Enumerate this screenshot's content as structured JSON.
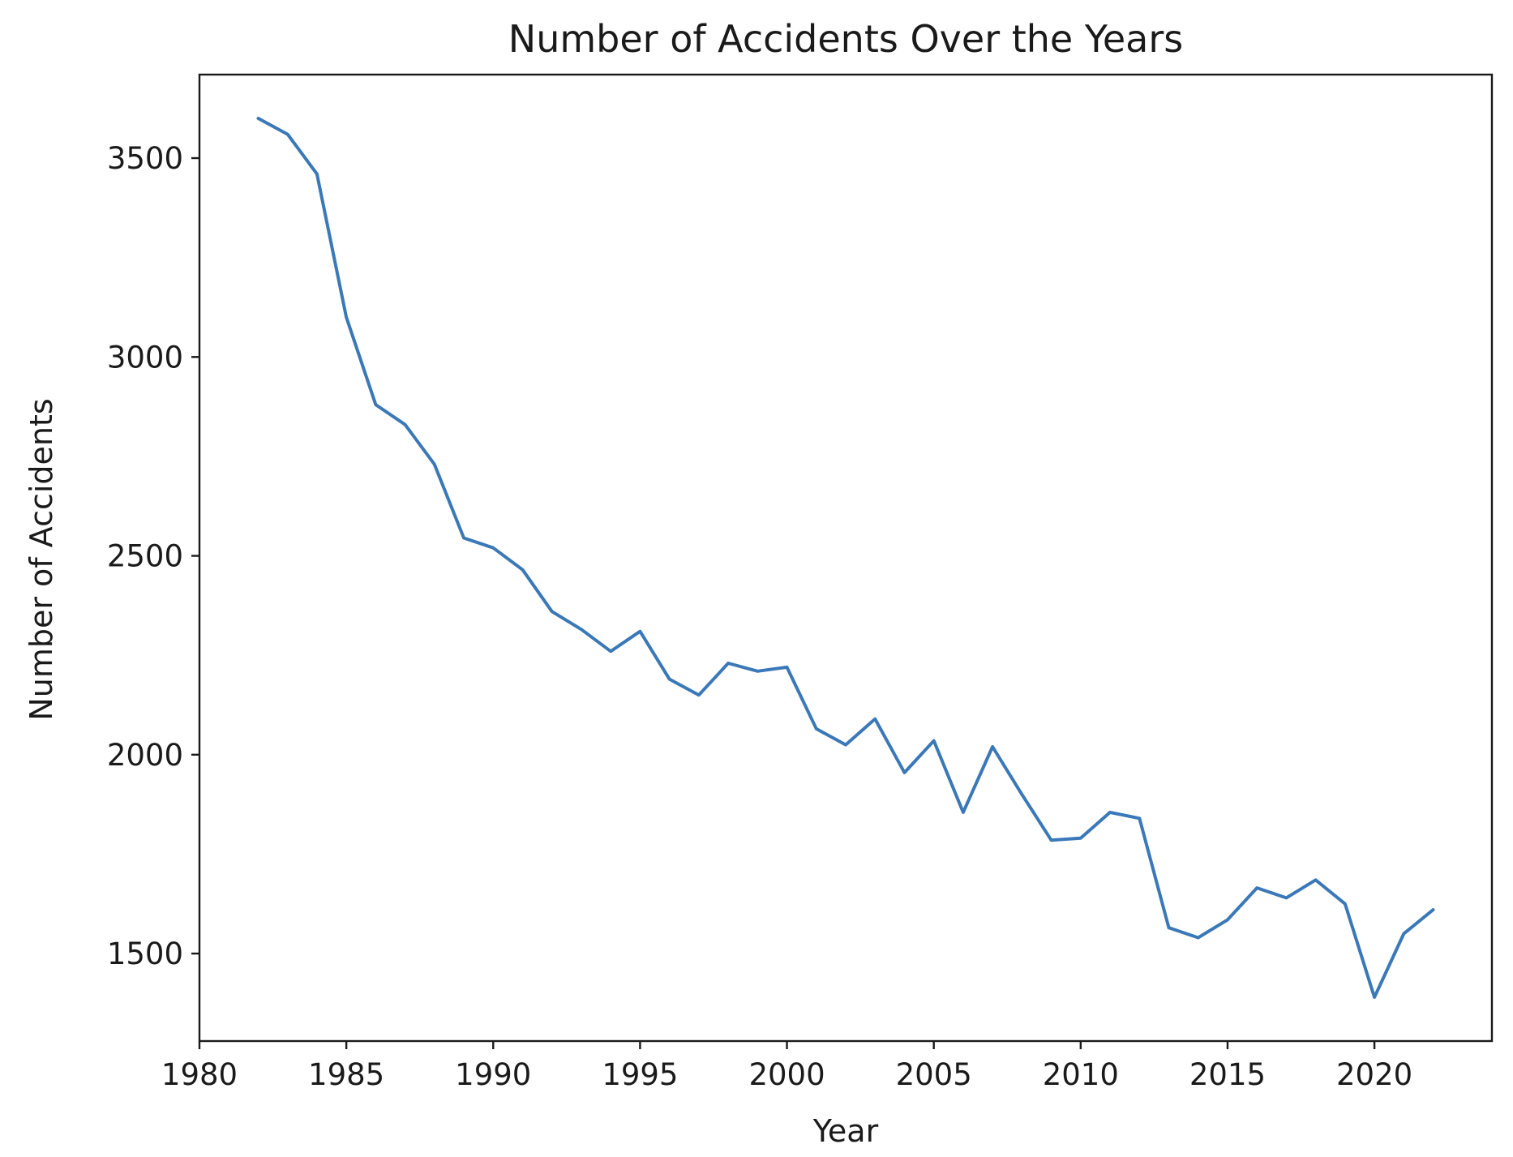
{
  "chart_data": {
    "type": "line",
    "title": "Number of Accidents Over the Years",
    "xlabel": "Year",
    "ylabel": "Number of Accidents",
    "xlim": [
      1980,
      2024
    ],
    "ylim": [
      1280,
      3710
    ],
    "xticks": [
      1980,
      1985,
      1990,
      1995,
      2000,
      2005,
      2010,
      2015,
      2020
    ],
    "yticks": [
      1500,
      2000,
      2500,
      3000,
      3500
    ],
    "grid": false,
    "line_color": "#3a78b8",
    "series": [
      {
        "x": [
          1982,
          1983,
          1984,
          1985,
          1986,
          1987,
          1988,
          1989,
          1990,
          1991,
          1992,
          1993,
          1994,
          1995,
          1996,
          1997,
          1998,
          1999,
          2000,
          2001,
          2002,
          2003,
          2004,
          2005,
          2006,
          2007,
          2008,
          2009,
          2010,
          2011,
          2012,
          2013,
          2014,
          2015,
          2016,
          2017,
          2018,
          2019,
          2020,
          2021,
          2022
        ],
        "values": [
          3600,
          3560,
          3460,
          3100,
          2880,
          2830,
          2730,
          2545,
          2520,
          2465,
          2360,
          2315,
          2260,
          2310,
          2190,
          2150,
          2230,
          2210,
          2220,
          2065,
          2025,
          2090,
          1955,
          2035,
          1855,
          2020,
          1900,
          1785,
          1790,
          1855,
          1840,
          1565,
          1540,
          1585,
          1665,
          1640,
          1685,
          1625,
          1390,
          1550,
          1610
        ]
      }
    ]
  }
}
